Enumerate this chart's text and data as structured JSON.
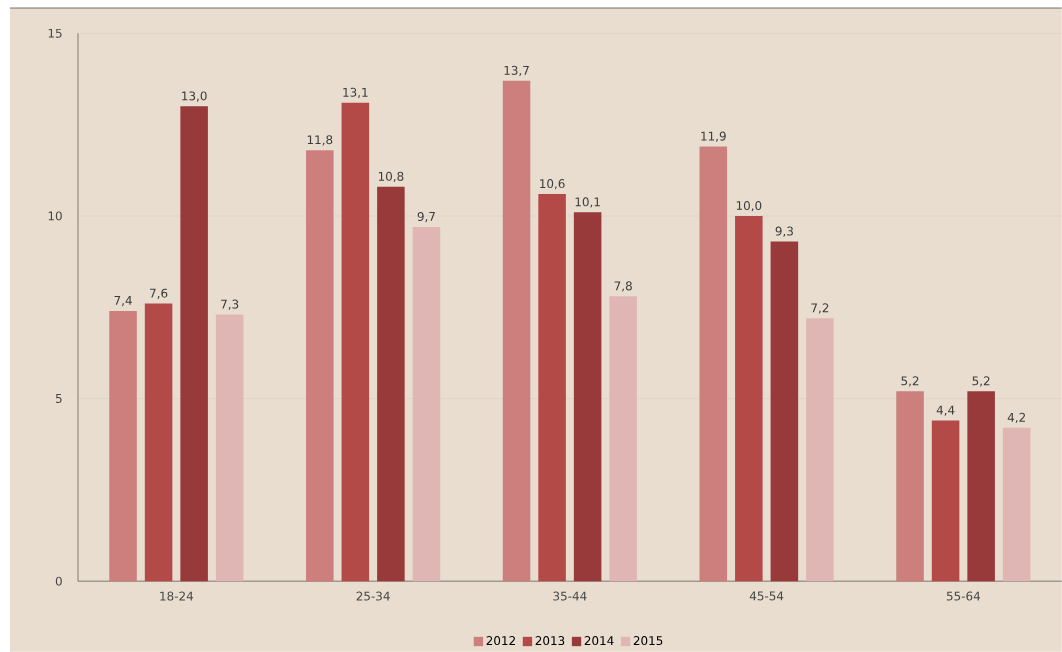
{
  "chart_data": {
    "type": "bar",
    "categories": [
      "18-24",
      "25-34",
      "35-44",
      "45-54",
      "55-64"
    ],
    "series": [
      {
        "name": "2012",
        "color": "#cc7f7d",
        "values": [
          7.4,
          11.8,
          13.7,
          11.9,
          5.2
        ],
        "value_labels": [
          "7,4",
          "11,8",
          "13,7",
          "11,9",
          "5,2"
        ]
      },
      {
        "name": "2013",
        "color": "#b44a48",
        "values": [
          7.6,
          13.1,
          10.6,
          10.0,
          4.4
        ],
        "value_labels": [
          "7,6",
          "13,1",
          "10,6",
          "10,0",
          "4,4"
        ]
      },
      {
        "name": "2014",
        "color": "#983a3a",
        "values": [
          13.0,
          10.8,
          10.1,
          9.3,
          5.2
        ],
        "value_labels": [
          "13,0",
          "10,8",
          "10,1",
          "9,3",
          "5,2"
        ]
      },
      {
        "name": "2015",
        "color": "#e0b6b4",
        "values": [
          7.3,
          9.7,
          7.8,
          7.2,
          4.2
        ],
        "value_labels": [
          "7,3",
          "9,7",
          "7,8",
          "7,2",
          "4,2"
        ]
      }
    ],
    "ylim": [
      0,
      15
    ],
    "yticks": [
      0,
      5,
      10,
      15
    ],
    "grid": "y",
    "legend": "bottom"
  }
}
